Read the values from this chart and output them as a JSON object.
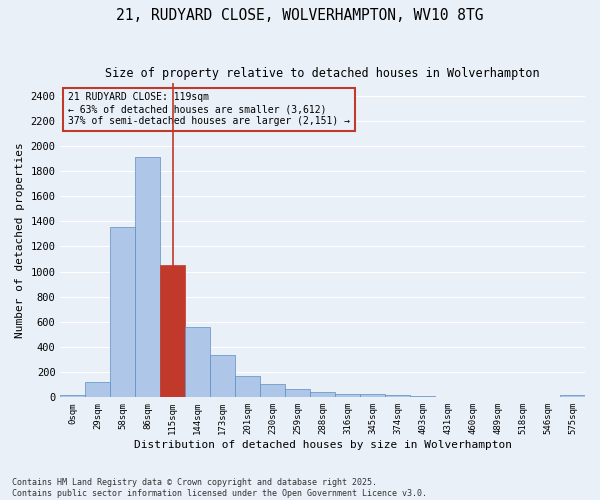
{
  "title_line1": "21, RUDYARD CLOSE, WOLVERHAMPTON, WV10 8TG",
  "title_line2": "Size of property relative to detached houses in Wolverhampton",
  "xlabel": "Distribution of detached houses by size in Wolverhampton",
  "ylabel": "Number of detached properties",
  "footer_line1": "Contains HM Land Registry data © Crown copyright and database right 2025.",
  "footer_line2": "Contains public sector information licensed under the Open Government Licence v3.0.",
  "annotation_line1": "21 RUDYARD CLOSE: 119sqm",
  "annotation_line2": "← 63% of detached houses are smaller (3,612)",
  "annotation_line3": "37% of semi-detached houses are larger (2,151) →",
  "bar_labels": [
    "0sqm",
    "29sqm",
    "58sqm",
    "86sqm",
    "115sqm",
    "144sqm",
    "173sqm",
    "201sqm",
    "230sqm",
    "259sqm",
    "288sqm",
    "316sqm",
    "345sqm",
    "374sqm",
    "403sqm",
    "431sqm",
    "460sqm",
    "489sqm",
    "518sqm",
    "546sqm",
    "575sqm"
  ],
  "bar_values": [
    15,
    125,
    1355,
    1910,
    1050,
    560,
    335,
    170,
    110,
    65,
    40,
    30,
    25,
    20,
    10,
    5,
    5,
    5,
    5,
    5,
    15
  ],
  "bar_color": "#aec6e8",
  "bar_edge_color": "#5a8fc2",
  "highlight_bar_index": 4,
  "highlight_bar_color": "#c0392b",
  "vline_color": "#c0392b",
  "annotation_box_color": "#c0392b",
  "bg_color": "#eaf0f8",
  "grid_color": "#ffffff",
  "ylim": [
    0,
    2500
  ],
  "yticks": [
    0,
    200,
    400,
    600,
    800,
    1000,
    1200,
    1400,
    1600,
    1800,
    2000,
    2200,
    2400
  ]
}
